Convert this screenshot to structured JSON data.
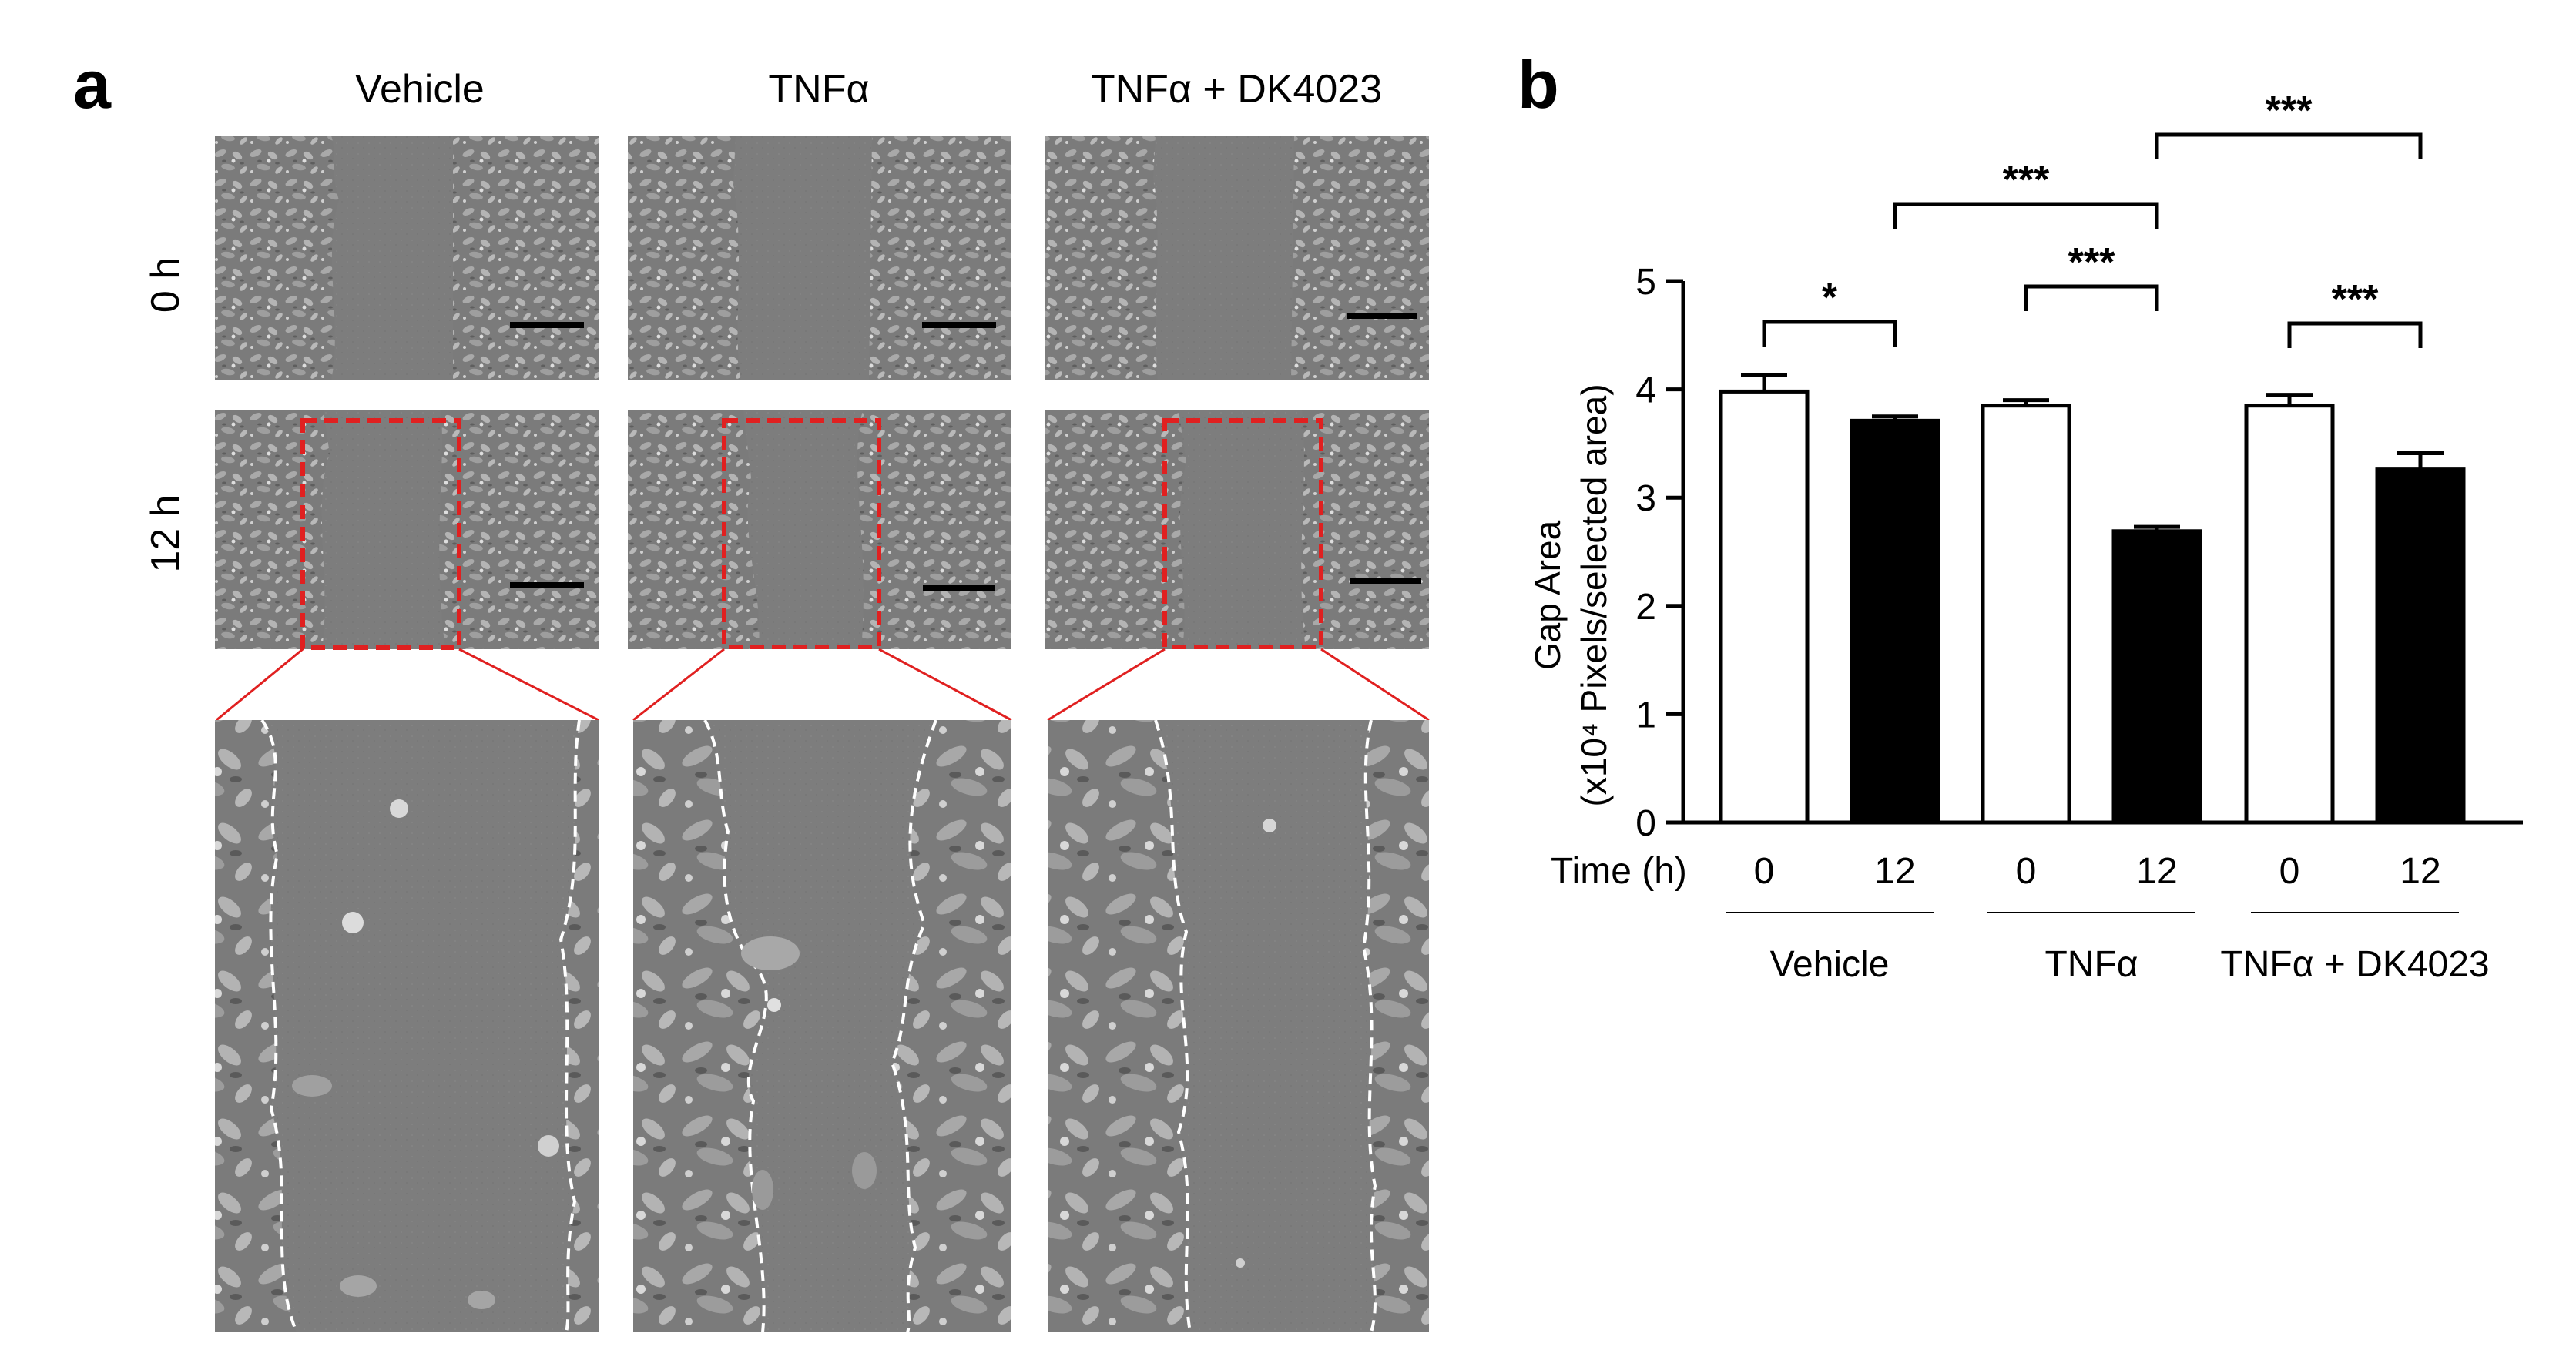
{
  "panels": {
    "a": {
      "letter": "a",
      "columns": [
        "Vehicle",
        "TNFα",
        "TNFα + DK4023"
      ],
      "rows": [
        "0 h",
        "12 h"
      ]
    },
    "b": {
      "letter": "b"
    }
  },
  "colors": {
    "micrograph_bg": "#7b7b7b",
    "cells": "#a9a9a9",
    "zoom_box": "#e02020",
    "bar_open": "#ffffff",
    "bar_filled": "#000000"
  },
  "chart_data": {
    "type": "bar",
    "ylabel": "Gap Area",
    "ylabel_line2": "(x10⁴ Pixels/selected area)",
    "ylim": [
      0,
      5
    ],
    "yticks": [
      "0",
      "1",
      "2",
      "3",
      "4",
      "5"
    ],
    "x_row_label": "Time (h)",
    "categories": [
      "0",
      "12",
      "0",
      "12",
      "0",
      "12"
    ],
    "groups": [
      "Vehicle",
      "TNFα",
      "TNFα + DK4023"
    ],
    "values": [
      3.98,
      3.71,
      3.85,
      2.69,
      3.85,
      3.26
    ],
    "errors": [
      0.15,
      0.04,
      0.05,
      0.04,
      0.1,
      0.15
    ],
    "fills": [
      "open",
      "filled",
      "open",
      "filled",
      "open",
      "filled"
    ],
    "significance": [
      {
        "from": 0,
        "to": 1,
        "label": "*"
      },
      {
        "from": 2,
        "to": 3,
        "label": "***"
      },
      {
        "from": 4,
        "to": 5,
        "label": "***"
      },
      {
        "from": 1,
        "to": 3,
        "label": "***"
      },
      {
        "from": 3,
        "to": 5,
        "label": "***"
      }
    ],
    "grid": false
  }
}
